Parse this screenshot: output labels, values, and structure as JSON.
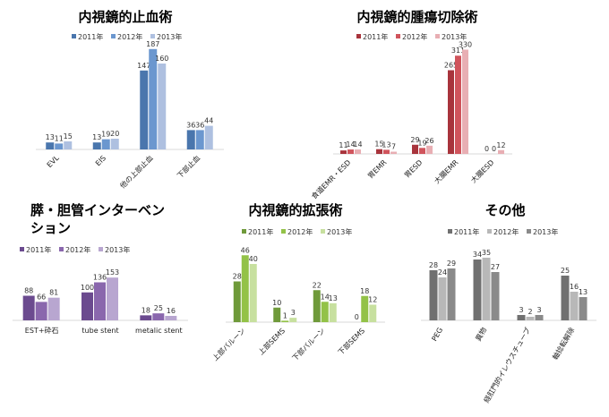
{
  "chart_data": [
    {
      "type": "bar",
      "title": "内視鏡的止血術",
      "categories": [
        "EVL",
        "EIS",
        "他の上部止血",
        "下部止血"
      ],
      "series": [
        {
          "name": "2011年",
          "values": [
            13,
            13,
            147,
            36
          ],
          "color": "#4a76ad"
        },
        {
          "name": "2012年",
          "values": [
            11,
            19,
            187,
            36
          ],
          "color": "#6b97cf"
        },
        {
          "name": "2013年",
          "values": [
            15,
            20,
            160,
            44
          ],
          "color": "#aec0e0"
        }
      ],
      "ylim": [
        0,
        200
      ],
      "grid": false,
      "legend": "top"
    },
    {
      "type": "bar",
      "title": "内視鏡的腫瘍切除術",
      "categories": [
        "食道EMR・ESD",
        "胃EMR",
        "胃ESD",
        "大腸EMR",
        "大腸ESD"
      ],
      "series": [
        {
          "name": "2011年",
          "values": [
            11,
            15,
            29,
            265,
            0
          ],
          "color": "#a8343c"
        },
        {
          "name": "2012年",
          "values": [
            14,
            13,
            19,
            311,
            0
          ],
          "color": "#d0545c"
        },
        {
          "name": "2013年",
          "values": [
            14,
            7,
            26,
            330,
            12
          ],
          "color": "#e8aeb3"
        }
      ],
      "ylim": [
        0,
        340
      ],
      "grid": false,
      "legend": "top"
    },
    {
      "type": "bar",
      "title": "膵・胆管インターベン ション",
      "categories": [
        "EST+砕石",
        "tube stent",
        "metalic stent"
      ],
      "series": [
        {
          "name": "2011年",
          "values": [
            88,
            100,
            18
          ],
          "color": "#6b4a8f"
        },
        {
          "name": "2012年",
          "values": [
            66,
            136,
            25
          ],
          "color": "#8a67ad"
        },
        {
          "name": "2013年",
          "values": [
            81,
            153,
            16
          ],
          "color": "#b8a6d0"
        }
      ],
      "ylim": [
        0,
        160
      ],
      "grid": false,
      "legend": "top"
    },
    {
      "type": "bar",
      "title": "内視鏡的拡張術",
      "categories": [
        "上部バルーン",
        "上部SEMS",
        "下部バルーン",
        "下部SEMS"
      ],
      "series": [
        {
          "name": "2011年",
          "values": [
            28,
            10,
            22,
            0
          ],
          "color": "#6f9a3a"
        },
        {
          "name": "2012年",
          "values": [
            46,
            1,
            14,
            18
          ],
          "color": "#93c248"
        },
        {
          "name": "2013年",
          "values": [
            40,
            3,
            13,
            12
          ],
          "color": "#c7e09f"
        }
      ],
      "ylim": [
        0,
        48
      ],
      "grid": false,
      "legend": "top"
    },
    {
      "type": "bar",
      "title": "その他",
      "categories": [
        "PEG",
        "異物",
        "経肛門的イレウスチューブ",
        "軸捻転解除"
      ],
      "series": [
        {
          "name": "2011年",
          "values": [
            28,
            34,
            3,
            25
          ],
          "color": "#707070"
        },
        {
          "name": "2012年",
          "values": [
            24,
            35,
            2,
            16
          ],
          "color": "#b8b8b8"
        },
        {
          "name": "2013年",
          "values": [
            29,
            27,
            3,
            13
          ],
          "color": "#8a8a8a"
        }
      ],
      "ylim": [
        0,
        36
      ],
      "grid": false,
      "legend": "top"
    }
  ]
}
